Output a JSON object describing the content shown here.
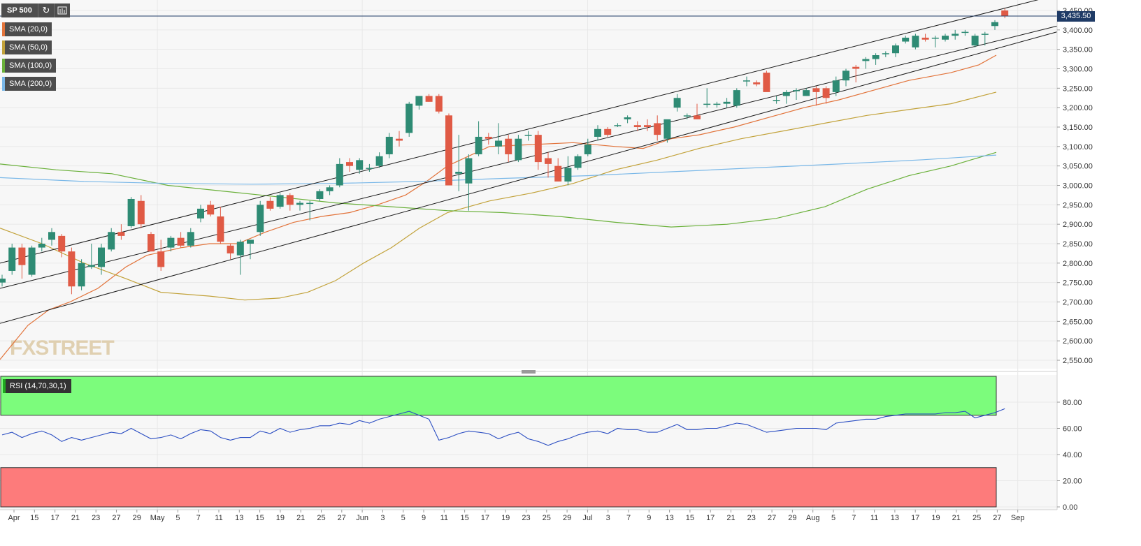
{
  "toolbar": {
    "symbol": "SP 500",
    "refresh_icon": "refresh-icon",
    "settings_icon": "indicator-settings-icon"
  },
  "indicators": [
    {
      "label": "SMA (20,0)",
      "color": "#e2733a"
    },
    {
      "label": "SMA (50,0)",
      "color": "#c2a23a"
    },
    {
      "label": "SMA (100,0)",
      "color": "#6ab03a"
    },
    {
      "label": "SMA (200,0)",
      "color": "#7ab8e8"
    }
  ],
  "rsi": {
    "label": "RSI (14,70,30,1)",
    "overbought": 70,
    "oversold": 30,
    "line_color": "#2a4dc2"
  },
  "current_price": "3,435.50",
  "watermark": "FXSTREET",
  "colors": {
    "bull": "#2e8b74",
    "bear": "#e05a45",
    "channel": "#1a1a1a",
    "grid": "#e8e8e8",
    "overbought_zone": "#7cfc7c",
    "oversold_zone": "#fd7b7b"
  },
  "chart_data": [
    {
      "type": "candlestick",
      "title": "SP 500",
      "price_axis_ticks": [
        "3,450.00",
        "3,400.00",
        "3,350.00",
        "3,300.00",
        "3,250.00",
        "3,200.00",
        "3,150.00",
        "3,100.00",
        "3,050.00",
        "3,000.00",
        "2,950.00",
        "2,900.00",
        "2,850.00",
        "2,800.00",
        "2,750.00",
        "2,700.00",
        "2,650.00",
        "2,600.00",
        "2,550.00"
      ],
      "ylim": [
        2525,
        3460
      ],
      "grid": true,
      "date_ticks": [
        "Apr",
        "15",
        "17",
        "21",
        "23",
        "27",
        "29",
        "May",
        "5",
        "7",
        "11",
        "13",
        "15",
        "19",
        "21",
        "25",
        "27",
        "Jun",
        "3",
        "5",
        "9",
        "11",
        "15",
        "17",
        "19",
        "23",
        "25",
        "29",
        "Jul",
        "3",
        "7",
        "9",
        "13",
        "15",
        "17",
        "21",
        "23",
        "27",
        "29",
        "Aug",
        "5",
        "7",
        "11",
        "13",
        "17",
        "19",
        "21",
        "25",
        "27",
        "Sep"
      ],
      "candles": [
        [
          2750,
          2770,
          2740,
          2760
        ],
        [
          2780,
          2850,
          2770,
          2840
        ],
        [
          2840,
          2850,
          2760,
          2795
        ],
        [
          2770,
          2845,
          2765,
          2840
        ],
        [
          2840,
          2865,
          2830,
          2850
        ],
        [
          2860,
          2890,
          2845,
          2880
        ],
        [
          2870,
          2875,
          2815,
          2830
        ],
        [
          2830,
          2840,
          2720,
          2740
        ],
        [
          2740,
          2810,
          2730,
          2800
        ],
        [
          2790,
          2850,
          2785,
          2795
        ],
        [
          2790,
          2850,
          2770,
          2840
        ],
        [
          2835,
          2890,
          2830,
          2880
        ],
        [
          2880,
          2900,
          2860,
          2870
        ],
        [
          2895,
          2970,
          2890,
          2965
        ],
        [
          2960,
          2975,
          2890,
          2900
        ],
        [
          2875,
          2880,
          2830,
          2830
        ],
        [
          2830,
          2860,
          2780,
          2790
        ],
        [
          2840,
          2870,
          2830,
          2865
        ],
        [
          2865,
          2880,
          2840,
          2845
        ],
        [
          2845,
          2890,
          2840,
          2880
        ],
        [
          2915,
          2950,
          2905,
          2940
        ],
        [
          2950,
          2960,
          2920,
          2925
        ],
        [
          2920,
          2945,
          2850,
          2855
        ],
        [
          2845,
          2850,
          2810,
          2825
        ],
        [
          2820,
          2860,
          2770,
          2855
        ],
        [
          2850,
          2860,
          2810,
          2860
        ],
        [
          2880,
          2960,
          2870,
          2950
        ],
        [
          2960,
          2970,
          2935,
          2940
        ],
        [
          2945,
          2980,
          2940,
          2975
        ],
        [
          2975,
          2980,
          2935,
          2950
        ],
        [
          2950,
          2960,
          2935,
          2955
        ],
        [
          2955,
          2960,
          2910,
          2955
        ],
        [
          2965,
          2990,
          2960,
          2985
        ],
        [
          2985,
          3000,
          2975,
          2995
        ],
        [
          3000,
          3070,
          2995,
          3055
        ],
        [
          3060,
          3070,
          3035,
          3050
        ],
        [
          3040,
          3070,
          3030,
          3065
        ],
        [
          3045,
          3055,
          3035,
          3045
        ],
        [
          3050,
          3085,
          3045,
          3075
        ],
        [
          3080,
          3135,
          3070,
          3125
        ],
        [
          3120,
          3140,
          3100,
          3115
        ],
        [
          3135,
          3215,
          3125,
          3210
        ],
        [
          3205,
          3230,
          3195,
          3230
        ],
        [
          3230,
          3235,
          3215,
          3215
        ],
        [
          3230,
          3235,
          3185,
          3190
        ],
        [
          3180,
          3185,
          3000,
          3000
        ],
        [
          3030,
          3130,
          2985,
          3035
        ],
        [
          3005,
          3080,
          2935,
          3070
        ],
        [
          3080,
          3165,
          3075,
          3125
        ],
        [
          3125,
          3135,
          3105,
          3120
        ],
        [
          3100,
          3160,
          3080,
          3115
        ],
        [
          3120,
          3130,
          3060,
          3080
        ],
        [
          3065,
          3130,
          3060,
          3120
        ],
        [
          3130,
          3140,
          3115,
          3130
        ],
        [
          3130,
          3140,
          3040,
          3060
        ],
        [
          3070,
          3085,
          3020,
          3055
        ],
        [
          3050,
          3070,
          3010,
          3010
        ],
        [
          3010,
          3075,
          3000,
          3045
        ],
        [
          3045,
          3080,
          3040,
          3075
        ],
        [
          3080,
          3120,
          3075,
          3105
        ],
        [
          3125,
          3155,
          3115,
          3145
        ],
        [
          3145,
          3150,
          3125,
          3130
        ],
        [
          3155,
          3160,
          3150,
          3155
        ],
        [
          3170,
          3180,
          3160,
          3175
        ],
        [
          3155,
          3165,
          3140,
          3150
        ],
        [
          3155,
          3170,
          3140,
          3150
        ],
        [
          3160,
          3180,
          3115,
          3130
        ],
        [
          3120,
          3165,
          3110,
          3170
        ],
        [
          3200,
          3235,
          3190,
          3225
        ],
        [
          3180,
          3185,
          3170,
          3180
        ],
        [
          3180,
          3210,
          3170,
          3170
        ],
        [
          3210,
          3250,
          3200,
          3210
        ],
        [
          3210,
          3215,
          3200,
          3210
        ],
        [
          3210,
          3225,
          3200,
          3215
        ],
        [
          3205,
          3250,
          3200,
          3245
        ],
        [
          3270,
          3280,
          3255,
          3270
        ],
        [
          3265,
          3270,
          3255,
          3260
        ],
        [
          3290,
          3295,
          3245,
          3240
        ],
        [
          3220,
          3230,
          3210,
          3220
        ],
        [
          3230,
          3245,
          3210,
          3240
        ],
        [
          3245,
          3250,
          3220,
          3245
        ],
        [
          3230,
          3250,
          3230,
          3245
        ],
        [
          3250,
          3255,
          3205,
          3240
        ],
        [
          3250,
          3255,
          3210,
          3225
        ],
        [
          3240,
          3280,
          3230,
          3270
        ],
        [
          3270,
          3300,
          3255,
          3295
        ],
        [
          3305,
          3310,
          3265,
          3300
        ],
        [
          3320,
          3330,
          3300,
          3325
        ],
        [
          3325,
          3340,
          3310,
          3335
        ],
        [
          3340,
          3345,
          3330,
          3340
        ],
        [
          3340,
          3365,
          3330,
          3360
        ],
        [
          3370,
          3385,
          3365,
          3380
        ],
        [
          3355,
          3390,
          3350,
          3385
        ],
        [
          3380,
          3390,
          3370,
          3375
        ],
        [
          3380,
          3385,
          3355,
          3380
        ],
        [
          3375,
          3390,
          3370,
          3385
        ],
        [
          3385,
          3400,
          3375,
          3390
        ],
        [
          3395,
          3400,
          3385,
          3395
        ],
        [
          3360,
          3390,
          3355,
          3385
        ],
        [
          3390,
          3395,
          3360,
          3390
        ],
        [
          3410,
          3425,
          3400,
          3420
        ],
        [
          3450,
          3455,
          3430,
          3435
        ]
      ],
      "last_price": 3435.5
    },
    {
      "type": "line",
      "title": "RSI (14,70,30,1)",
      "axis_ticks": [
        "80.00",
        "60.00",
        "40.00",
        "20.00",
        "0.00"
      ],
      "ylim": [
        0,
        100
      ],
      "overbought": 70,
      "oversold": 30,
      "values": [
        55,
        57,
        53,
        56,
        58,
        55,
        50,
        53,
        51,
        53,
        55,
        57,
        56,
        60,
        56,
        52,
        53,
        55,
        52,
        56,
        59,
        58,
        53,
        51,
        53,
        53,
        58,
        56,
        60,
        57,
        59,
        60,
        62,
        62,
        64,
        63,
        66,
        64,
        67,
        69,
        71,
        73,
        70,
        67,
        51,
        53,
        56,
        58,
        57,
        56,
        52,
        55,
        57,
        52,
        50,
        47,
        50,
        52,
        55,
        57,
        58,
        56,
        60,
        59,
        59,
        57,
        57,
        60,
        63,
        59,
        59,
        60,
        60,
        62,
        64,
        63,
        60,
        57,
        58,
        59,
        60,
        60,
        60,
        59,
        64,
        65,
        66,
        67,
        67,
        69,
        70,
        71,
        71,
        71,
        71,
        72,
        72,
        73,
        68,
        70,
        72,
        75
      ]
    }
  ]
}
